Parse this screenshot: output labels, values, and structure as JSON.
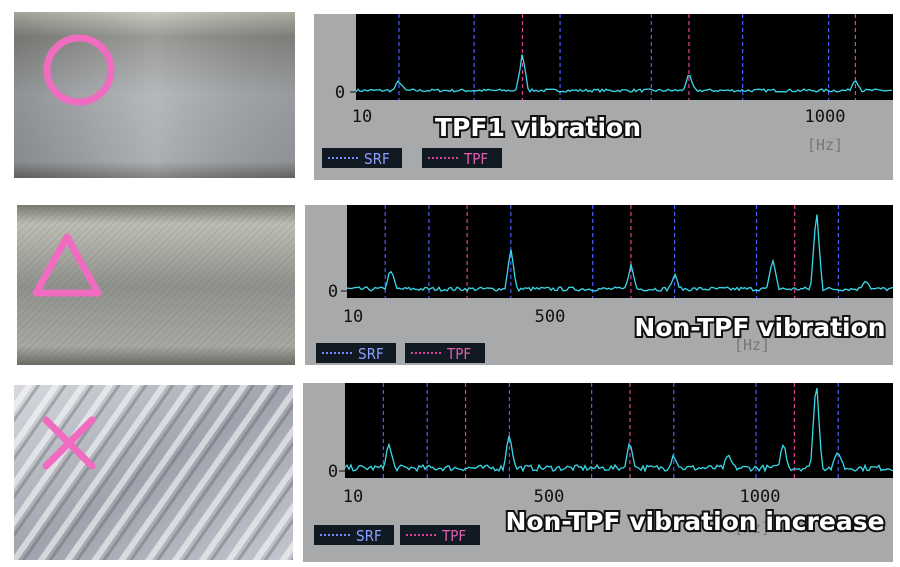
{
  "panels": [
    {
      "y_label": "0",
      "x_labels": [
        "10",
        "1000"
      ],
      "unit": "[Hz]",
      "legend": [
        "SRF",
        "TPF"
      ],
      "caption": "TPF1 vibration"
    },
    {
      "y_label": "0",
      "x_labels": [
        "10",
        "500"
      ],
      "unit": "[Hz]",
      "legend": [
        "SRF",
        "TPF"
      ],
      "caption": "Non-TPF vibration"
    },
    {
      "y_label": "0",
      "x_labels": [
        "10",
        "500",
        "1000"
      ],
      "unit": "[Hz]",
      "legend": [
        "SRF",
        "TPF"
      ],
      "caption": "Non-TPF vibration increase"
    }
  ]
}
